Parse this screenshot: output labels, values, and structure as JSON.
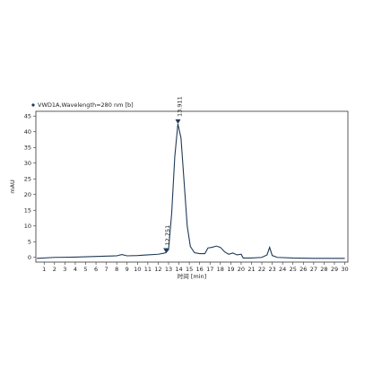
{
  "chart_data": {
    "type": "line",
    "title": "VWD1A,Wavelength=280 nm [b]",
    "x_label": "时间 [min]",
    "y_label": "mAU",
    "x": [
      0.3,
      2,
      4,
      6,
      8,
      8.5,
      9,
      10,
      11,
      12,
      12.5,
      12.75,
      13,
      13.3,
      13.6,
      13.9,
      14.2,
      14.5,
      14.8,
      15.1,
      15.5,
      16,
      16.5,
      16.8,
      17.2,
      17.6,
      18,
      18.4,
      18.8,
      19.2,
      19.6,
      20,
      20.2,
      21,
      22,
      22.5,
      22.75,
      23,
      23.5,
      25,
      27,
      30
    ],
    "series": [
      {
        "name": "VWD1A",
        "color": "#1f3a5a",
        "values": [
          -0.3,
          0,
          0.1,
          0.3,
          0.5,
          0.9,
          0.5,
          0.6,
          0.8,
          1.0,
          1.3,
          1.5,
          2.5,
          14,
          32,
          42.5,
          38,
          24,
          10,
          3.5,
          1.5,
          1.2,
          1.2,
          3.0,
          3.2,
          3.6,
          3.2,
          1.8,
          1.0,
          1.4,
          0.8,
          1.0,
          -0.2,
          -0.2,
          0.0,
          0.8,
          3.2,
          0.6,
          0,
          -0.2,
          -0.3,
          -0.3
        ]
      }
    ],
    "annotations": [
      {
        "x": 12.751,
        "y": 1.5,
        "label": "12.751"
      },
      {
        "x": 13.911,
        "y": 42.5,
        "label": "13.911"
      }
    ],
    "xlim": [
      0.2,
      30.3
    ],
    "ylim": [
      -1.5,
      46.5
    ],
    "xticks": [
      1,
      2,
      3,
      4,
      5,
      6,
      7,
      8,
      9,
      10,
      11,
      12,
      13,
      14,
      15,
      16,
      17,
      18,
      19,
      20,
      21,
      22,
      23,
      24,
      25,
      26,
      27,
      28,
      29,
      30
    ],
    "yticks": [
      0,
      5,
      10,
      15,
      20,
      25,
      30,
      35,
      40,
      45
    ]
  }
}
